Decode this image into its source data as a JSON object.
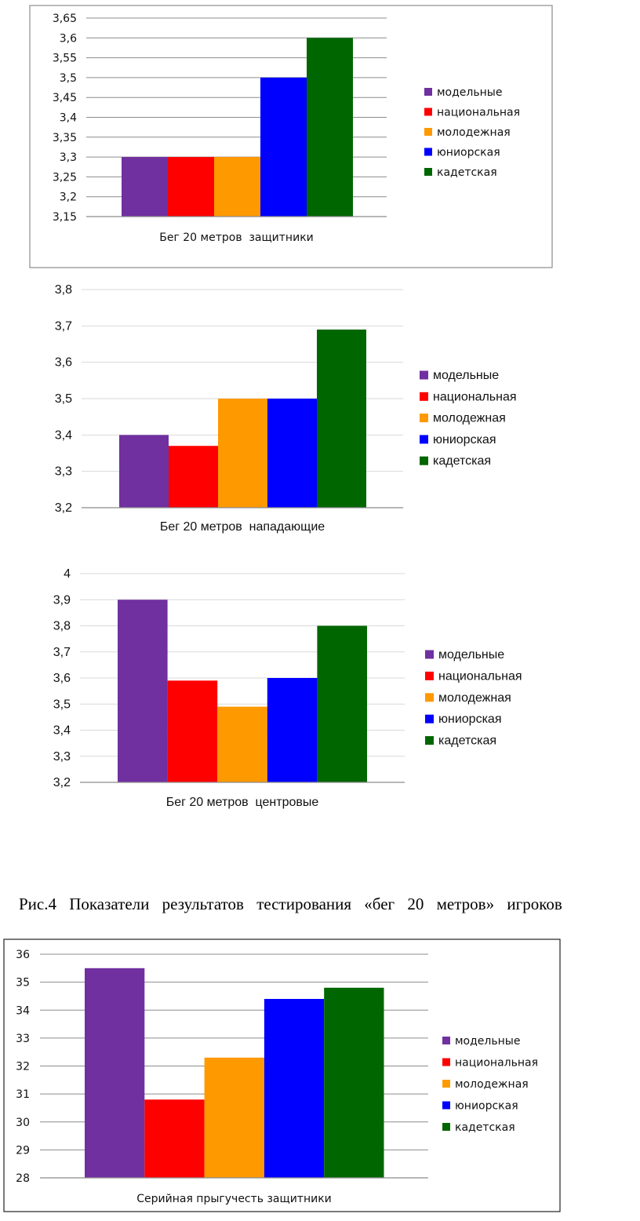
{
  "caption": "Рис.4 Показатели результатов тестирования «бег 20 метров» игроков",
  "chart_data": [
    {
      "type": "bar",
      "categories": [
        "Бег 20 метров  защитники"
      ],
      "series": [
        {
          "name": "модельные",
          "values": [
            3.3
          ],
          "color": "#7030a0"
        },
        {
          "name": "национальная",
          "values": [
            3.3
          ],
          "color": "#ff0000"
        },
        {
          "name": "молодежная",
          "values": [
            3.3
          ],
          "color": "#ff9900"
        },
        {
          "name": "юниорская",
          "values": [
            3.5
          ],
          "color": "#0000ff"
        },
        {
          "name": "кадетская",
          "values": [
            3.6
          ],
          "color": "#006600"
        }
      ],
      "ylim": [
        3.15,
        3.65
      ],
      "yticks": [
        "3,15",
        "3,2",
        "3,25",
        "3,3",
        "3,35",
        "3,4",
        "3,45",
        "3,5",
        "3,55",
        "3,6",
        "3,65"
      ],
      "grid": true,
      "legend": "right"
    },
    {
      "type": "bar",
      "categories": [
        "Бег 20 метров  нападающие"
      ],
      "series": [
        {
          "name": "модельные",
          "values": [
            3.4
          ],
          "color": "#7030a0"
        },
        {
          "name": "национальная",
          "values": [
            3.37
          ],
          "color": "#ff0000"
        },
        {
          "name": "молодежная",
          "values": [
            3.5
          ],
          "color": "#ff9900"
        },
        {
          "name": "юниорская",
          "values": [
            3.5
          ],
          "color": "#0000ff"
        },
        {
          "name": "кадетская",
          "values": [
            3.69
          ],
          "color": "#006600"
        }
      ],
      "ylim": [
        3.2,
        3.8
      ],
      "yticks": [
        "3,2",
        "3,3",
        "3,4",
        "3,5",
        "3,6",
        "3,7",
        "3,8"
      ],
      "grid": true,
      "legend": "right"
    },
    {
      "type": "bar",
      "categories": [
        "Бег 20 метров  центровые"
      ],
      "series": [
        {
          "name": "модельные",
          "values": [
            3.9
          ],
          "color": "#7030a0"
        },
        {
          "name": "национальная",
          "values": [
            3.59
          ],
          "color": "#ff0000"
        },
        {
          "name": "молодежная",
          "values": [
            3.49
          ],
          "color": "#ff9900"
        },
        {
          "name": "юниорская",
          "values": [
            3.6
          ],
          "color": "#0000ff"
        },
        {
          "name": "кадетская",
          "values": [
            3.8
          ],
          "color": "#006600"
        }
      ],
      "ylim": [
        3.2,
        4.0
      ],
      "yticks": [
        "3,2",
        "3,3",
        "3,4",
        "3,5",
        "3,6",
        "3,7",
        "3,8",
        "3,9",
        "4"
      ],
      "grid": true,
      "legend": "right"
    },
    {
      "type": "bar",
      "categories": [
        "Серийная прыгучесть защитники"
      ],
      "series": [
        {
          "name": "модельные",
          "values": [
            35.5
          ],
          "color": "#7030a0"
        },
        {
          "name": "национальная",
          "values": [
            30.8
          ],
          "color": "#ff0000"
        },
        {
          "name": "молодежная",
          "values": [
            32.3
          ],
          "color": "#ff9900"
        },
        {
          "name": "юниорская",
          "values": [
            34.4
          ],
          "color": "#0000ff"
        },
        {
          "name": "кадетская",
          "values": [
            34.8
          ],
          "color": "#006600"
        }
      ],
      "ylim": [
        28,
        36
      ],
      "yticks": [
        "28",
        "29",
        "30",
        "31",
        "32",
        "33",
        "34",
        "35",
        "36"
      ],
      "grid": true,
      "legend": "right"
    }
  ]
}
